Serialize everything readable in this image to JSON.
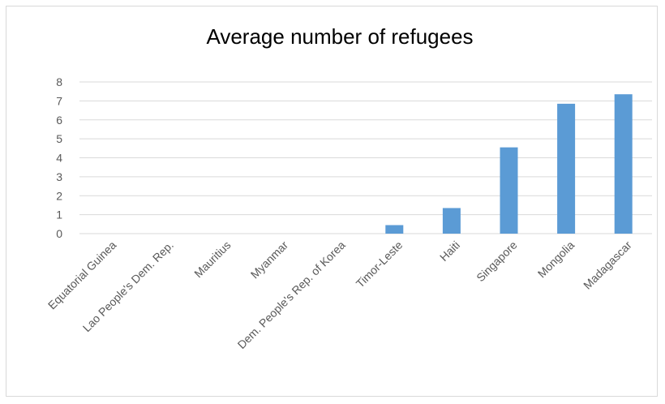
{
  "chart_data": {
    "type": "bar",
    "title": "Average number of refugees",
    "categories": [
      "Equatorial Guinea",
      "Lao People's Dem. Rep.",
      "Mauritius",
      "Myanmar",
      "Dem. People's Rep. of Korea",
      "Timor-Leste",
      "Haiti",
      "Singapore",
      "Mongolia",
      "Madagascar"
    ],
    "values": [
      0,
      0,
      0,
      0,
      0,
      0.45,
      1.35,
      4.55,
      6.85,
      7.35
    ],
    "y_ticks": [
      "0",
      "1",
      "2",
      "3",
      "4",
      "5",
      "6",
      "7",
      "8"
    ],
    "ylim": [
      0,
      8
    ],
    "grid": true,
    "legend": "none",
    "bar_color": "#5b9bd5",
    "grid_color": "#d9d9d9"
  }
}
